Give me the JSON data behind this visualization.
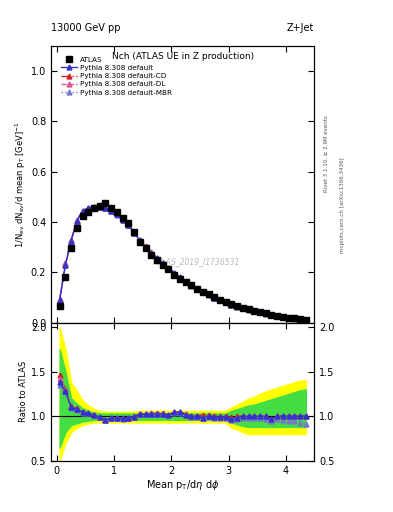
{
  "title_top": "13000 GeV pp",
  "title_right": "Z+Jet",
  "plot_title": "Nch (ATLAS UE in Z production)",
  "watermark": "ATLAS_2019_I1736531",
  "rivet_label": "Rivet 3.1.10, ≥ 2.9M events",
  "mcplots_label": "mcplots.cern.ch [arXiv:1306.3436]",
  "xlabel": "Mean p$_\\mathrm{T}$/d$\\eta$ d$\\phi$",
  "ylabel_main": "1/N$_{\\mathrm{ev}}$ dN$_{\\mathrm{ev}}$/d mean p$_\\mathrm{T}$ [GeV]$^{-1}$",
  "ylabel_ratio": "Ratio to ATLAS",
  "xlim": [
    -0.1,
    4.5
  ],
  "ylim_main": [
    0,
    1.1
  ],
  "ylim_ratio": [
    0.5,
    2.05
  ],
  "x_data": [
    0.05,
    0.15,
    0.25,
    0.35,
    0.45,
    0.55,
    0.65,
    0.75,
    0.85,
    0.95,
    1.05,
    1.15,
    1.25,
    1.35,
    1.45,
    1.55,
    1.65,
    1.75,
    1.85,
    1.95,
    2.05,
    2.15,
    2.25,
    2.35,
    2.45,
    2.55,
    2.65,
    2.75,
    2.85,
    2.95,
    3.05,
    3.15,
    3.25,
    3.35,
    3.45,
    3.55,
    3.65,
    3.75,
    3.85,
    3.95,
    4.05,
    4.15,
    4.25,
    4.35
  ],
  "atlas_y": [
    0.065,
    0.18,
    0.295,
    0.375,
    0.425,
    0.44,
    0.455,
    0.465,
    0.475,
    0.455,
    0.44,
    0.415,
    0.395,
    0.36,
    0.32,
    0.295,
    0.27,
    0.25,
    0.23,
    0.215,
    0.19,
    0.172,
    0.16,
    0.148,
    0.135,
    0.122,
    0.112,
    0.1,
    0.09,
    0.082,
    0.073,
    0.065,
    0.058,
    0.052,
    0.047,
    0.042,
    0.037,
    0.032,
    0.028,
    0.024,
    0.02,
    0.017,
    0.014,
    0.012
  ],
  "pythia_default_y": [
    0.09,
    0.23,
    0.325,
    0.405,
    0.445,
    0.455,
    0.46,
    0.46,
    0.455,
    0.445,
    0.43,
    0.41,
    0.388,
    0.358,
    0.328,
    0.302,
    0.278,
    0.257,
    0.237,
    0.218,
    0.198,
    0.18,
    0.163,
    0.148,
    0.135,
    0.122,
    0.112,
    0.099,
    0.089,
    0.081,
    0.071,
    0.064,
    0.058,
    0.052,
    0.047,
    0.042,
    0.037,
    0.032,
    0.028,
    0.024,
    0.02,
    0.017,
    0.014,
    0.012
  ],
  "pythia_cd_y": [
    0.095,
    0.235,
    0.328,
    0.408,
    0.445,
    0.456,
    0.461,
    0.461,
    0.456,
    0.446,
    0.431,
    0.411,
    0.389,
    0.359,
    0.329,
    0.303,
    0.279,
    0.258,
    0.238,
    0.219,
    0.199,
    0.181,
    0.164,
    0.149,
    0.136,
    0.123,
    0.113,
    0.1,
    0.09,
    0.082,
    0.072,
    0.065,
    0.058,
    0.052,
    0.047,
    0.042,
    0.037,
    0.032,
    0.028,
    0.024,
    0.02,
    0.017,
    0.014,
    0.012
  ],
  "pythia_dl_y": [
    0.092,
    0.232,
    0.326,
    0.406,
    0.444,
    0.455,
    0.46,
    0.46,
    0.455,
    0.445,
    0.43,
    0.41,
    0.388,
    0.358,
    0.328,
    0.302,
    0.278,
    0.257,
    0.237,
    0.218,
    0.198,
    0.18,
    0.163,
    0.148,
    0.135,
    0.122,
    0.112,
    0.099,
    0.089,
    0.081,
    0.071,
    0.064,
    0.058,
    0.052,
    0.047,
    0.042,
    0.037,
    0.032,
    0.028,
    0.024,
    0.02,
    0.017,
    0.014,
    0.012
  ],
  "pythia_mbr_y": [
    0.088,
    0.228,
    0.322,
    0.402,
    0.443,
    0.454,
    0.459,
    0.459,
    0.454,
    0.444,
    0.429,
    0.409,
    0.387,
    0.357,
    0.327,
    0.301,
    0.277,
    0.256,
    0.236,
    0.217,
    0.197,
    0.179,
    0.162,
    0.147,
    0.134,
    0.121,
    0.111,
    0.098,
    0.088,
    0.08,
    0.07,
    0.063,
    0.057,
    0.051,
    0.046,
    0.041,
    0.036,
    0.031,
    0.027,
    0.023,
    0.019,
    0.016,
    0.013,
    0.011
  ],
  "ratio_default": [
    1.38,
    1.28,
    1.1,
    1.08,
    1.047,
    1.034,
    1.011,
    0.989,
    0.958,
    0.978,
    0.977,
    0.976,
    0.982,
    0.994,
    1.025,
    1.024,
    1.03,
    1.028,
    1.03,
    1.014,
    1.042,
    1.047,
    1.019,
    1.0,
    1.0,
    0.984,
    1.0,
    0.99,
    0.989,
    0.988,
    0.973,
    0.985,
    1.0,
    1.0,
    1.0,
    1.0,
    1.0,
    0.969,
    1.0,
    1.0,
    1.0,
    1.0,
    1.0,
    1.0
  ],
  "ratio_cd": [
    1.46,
    1.31,
    1.11,
    1.09,
    1.047,
    1.036,
    1.013,
    0.991,
    0.96,
    0.98,
    0.98,
    0.978,
    0.985,
    0.997,
    1.028,
    1.027,
    1.033,
    1.032,
    1.035,
    1.019,
    1.047,
    1.052,
    1.025,
    1.007,
    1.007,
    1.008,
    1.009,
    1.0,
    1.0,
    1.0,
    0.986,
    1.0,
    1.0,
    1.0,
    1.0,
    1.0,
    1.0,
    0.969,
    1.0,
    1.0,
    1.0,
    1.0,
    1.0,
    1.0
  ],
  "ratio_dl": [
    1.42,
    1.29,
    1.105,
    1.083,
    1.044,
    1.034,
    1.011,
    0.989,
    0.958,
    0.978,
    0.977,
    0.976,
    0.982,
    0.994,
    1.025,
    1.024,
    1.03,
    1.028,
    1.03,
    1.014,
    1.042,
    1.047,
    1.019,
    1.0,
    1.0,
    0.984,
    1.0,
    0.99,
    0.989,
    0.988,
    0.973,
    0.985,
    1.0,
    1.0,
    1.0,
    1.0,
    1.0,
    0.969,
    1.0,
    1.0,
    1.0,
    1.0,
    1.0,
    1.0
  ],
  "ratio_mbr": [
    1.35,
    1.27,
    1.09,
    1.072,
    1.041,
    1.032,
    1.009,
    0.987,
    0.956,
    0.976,
    0.975,
    0.974,
    0.979,
    0.992,
    1.022,
    1.02,
    1.026,
    1.024,
    1.026,
    1.009,
    1.037,
    1.041,
    1.013,
    0.993,
    0.993,
    0.984,
    0.991,
    0.98,
    0.978,
    0.976,
    0.959,
    0.969,
    0.983,
    0.981,
    0.979,
    0.976,
    0.973,
    0.941,
    0.964,
    0.958,
    0.95,
    0.941,
    0.929,
    0.917
  ],
  "band_yellow_lo": [
    0.5,
    0.7,
    0.82,
    0.87,
    0.9,
    0.92,
    0.93,
    0.93,
    0.93,
    0.93,
    0.93,
    0.93,
    0.93,
    0.93,
    0.93,
    0.93,
    0.93,
    0.93,
    0.93,
    0.93,
    0.93,
    0.93,
    0.93,
    0.93,
    0.93,
    0.93,
    0.93,
    0.93,
    0.93,
    0.93,
    0.87,
    0.85,
    0.82,
    0.8,
    0.8,
    0.8,
    0.8,
    0.8,
    0.8,
    0.8,
    0.8,
    0.8,
    0.8,
    0.8
  ],
  "band_yellow_hi": [
    2.0,
    1.75,
    1.38,
    1.28,
    1.18,
    1.12,
    1.08,
    1.06,
    1.05,
    1.05,
    1.05,
    1.05,
    1.05,
    1.05,
    1.06,
    1.06,
    1.06,
    1.06,
    1.06,
    1.06,
    1.06,
    1.06,
    1.06,
    1.06,
    1.06,
    1.06,
    1.06,
    1.06,
    1.06,
    1.06,
    1.1,
    1.13,
    1.16,
    1.2,
    1.22,
    1.25,
    1.28,
    1.3,
    1.32,
    1.34,
    1.36,
    1.38,
    1.4,
    1.4
  ],
  "band_green_lo": [
    0.65,
    0.82,
    0.9,
    0.92,
    0.94,
    0.95,
    0.96,
    0.96,
    0.96,
    0.96,
    0.96,
    0.96,
    0.96,
    0.96,
    0.96,
    0.96,
    0.96,
    0.96,
    0.96,
    0.96,
    0.96,
    0.96,
    0.96,
    0.96,
    0.96,
    0.96,
    0.96,
    0.96,
    0.96,
    0.96,
    0.93,
    0.91,
    0.89,
    0.88,
    0.88,
    0.88,
    0.88,
    0.88,
    0.88,
    0.88,
    0.88,
    0.88,
    0.88,
    0.88
  ],
  "band_green_hi": [
    1.75,
    1.5,
    1.2,
    1.14,
    1.09,
    1.06,
    1.04,
    1.03,
    1.03,
    1.03,
    1.03,
    1.03,
    1.03,
    1.03,
    1.03,
    1.03,
    1.03,
    1.03,
    1.03,
    1.03,
    1.03,
    1.03,
    1.03,
    1.03,
    1.03,
    1.03,
    1.03,
    1.03,
    1.03,
    1.03,
    1.06,
    1.08,
    1.1,
    1.12,
    1.13,
    1.15,
    1.17,
    1.19,
    1.21,
    1.23,
    1.25,
    1.27,
    1.29,
    1.3
  ],
  "color_default": "#3333cc",
  "color_cd": "#cc2222",
  "color_dl": "#dd5599",
  "color_mbr": "#7777cc",
  "bg_color": "#ffffff"
}
